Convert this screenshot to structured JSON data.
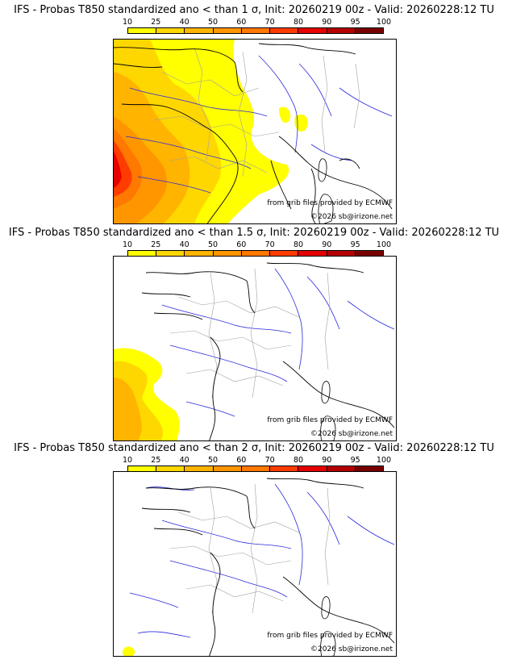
{
  "panels": [
    {
      "title": "IFS - Probas T850  standardized ano < than 1 σ, Init: 20260219 00z - Valid: 20260228:12 TU",
      "threshold": "1 σ",
      "max_probability_pct": 90
    },
    {
      "title": "IFS - Probas T850  standardized ano < than 1.5 σ, Init: 20260219 00z - Valid: 20260228:12 TU",
      "threshold": "1.5 σ",
      "max_probability_pct": 60
    },
    {
      "title": "IFS - Probas T850  standardized ano < than 2 σ, Init: 20260219 00z - Valid: 20260228:12 TU",
      "threshold": "2 σ",
      "max_probability_pct": 10
    }
  ],
  "legend": {
    "ticks": [
      "10",
      "25",
      "40",
      "50",
      "60",
      "70",
      "80",
      "90",
      "95",
      "100"
    ],
    "colors": [
      "#ffff00",
      "#ffd700",
      "#ffb400",
      "#ff9600",
      "#ff7800",
      "#ff3c00",
      "#e60000",
      "#b40000",
      "#780000"
    ]
  },
  "credits": {
    "source": "from grib files provided by ECMWF",
    "copyright": "©2026 sb@irizone.net"
  },
  "map_colors": {
    "coast": "#000000",
    "rivers": "#2a2adc",
    "borders": "#a0a0a0"
  }
}
